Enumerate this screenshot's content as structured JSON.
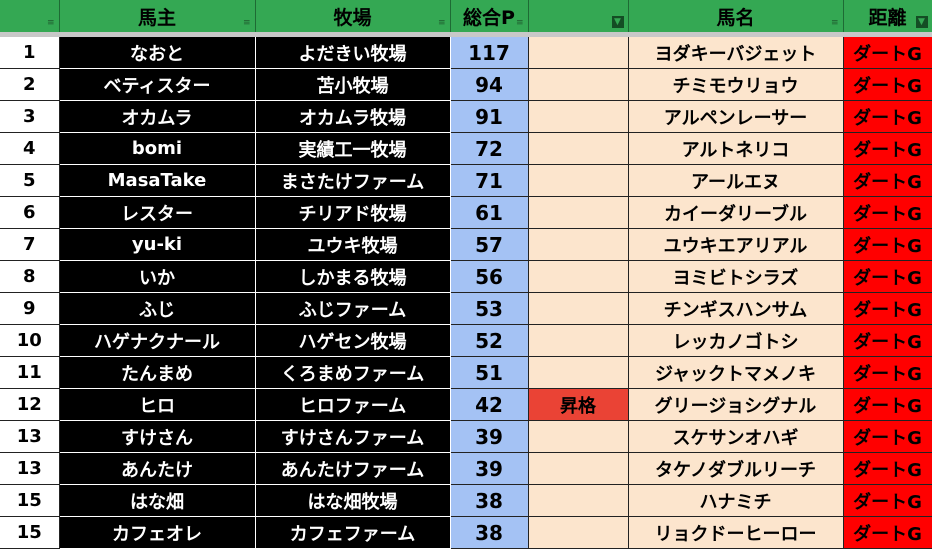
{
  "headers": [
    "",
    "馬主",
    "牧場",
    "総合P",
    "",
    "馬名",
    "距離"
  ],
  "filter_icons": [
    "filter-icon",
    "filter-icon",
    "filter-icon",
    "filter-icon",
    "filter-active-icon",
    "filter-icon",
    "filter-active-icon"
  ],
  "filter_glyph": "≡",
  "filter_active_glyph": "▼",
  "colors": {
    "header": "#34a853",
    "owner": "#000000",
    "points": "#a4c2f4",
    "peach": "#fce5cd",
    "promotion": "#ea4335",
    "distance": "#ff0000"
  },
  "rows": [
    {
      "rank": "1",
      "owner": "なおと",
      "farm": "よだきい牧場",
      "points": "117",
      "note": "",
      "horse": "ヨダキーバジェット",
      "distance": "ダートG"
    },
    {
      "rank": "2",
      "owner": "ベティスター",
      "farm": "苫小牧場",
      "points": "94",
      "note": "",
      "horse": "チミモウリョウ",
      "distance": "ダートG"
    },
    {
      "rank": "3",
      "owner": "オカムラ",
      "farm": "オカムラ牧場",
      "points": "91",
      "note": "",
      "horse": "アルペンレーサー",
      "distance": "ダートG"
    },
    {
      "rank": "4",
      "owner": "bomi",
      "farm": "実績工一牧場",
      "points": "72",
      "note": "",
      "horse": "アルトネリコ",
      "distance": "ダートG"
    },
    {
      "rank": "5",
      "owner": "MasaTake",
      "farm": "まさたけファーム",
      "points": "71",
      "note": "",
      "horse": "アールエヌ",
      "distance": "ダートG"
    },
    {
      "rank": "6",
      "owner": "レスター",
      "farm": "チリアド牧場",
      "points": "61",
      "note": "",
      "horse": "カイーダリーブル",
      "distance": "ダートG"
    },
    {
      "rank": "7",
      "owner": "yu-ki",
      "farm": "ユウキ牧場",
      "points": "57",
      "note": "",
      "horse": "ユウキエアリアル",
      "distance": "ダートG"
    },
    {
      "rank": "8",
      "owner": "いか",
      "farm": "しかまる牧場",
      "points": "56",
      "note": "",
      "horse": "ヨミビトシラズ",
      "distance": "ダートG"
    },
    {
      "rank": "9",
      "owner": "ふじ",
      "farm": "ふじファーム",
      "points": "53",
      "note": "",
      "horse": "チンギスハンサム",
      "distance": "ダートG"
    },
    {
      "rank": "10",
      "owner": "ハゲナクナール",
      "farm": "ハゲセン牧場",
      "points": "52",
      "note": "",
      "horse": "レッカノゴトシ",
      "distance": "ダートG"
    },
    {
      "rank": "11",
      "owner": "たんまめ",
      "farm": "くろまめファーム",
      "points": "51",
      "note": "",
      "horse": "ジャックトマメノキ",
      "distance": "ダートG"
    },
    {
      "rank": "12",
      "owner": "ヒロ",
      "farm": "ヒロファーム",
      "points": "42",
      "note": "昇格",
      "horse": "グリージョシグナル",
      "distance": "ダートG"
    },
    {
      "rank": "13",
      "owner": "すけさん",
      "farm": "すけさんファーム",
      "points": "39",
      "note": "",
      "horse": "スケサンオハギ",
      "distance": "ダートG"
    },
    {
      "rank": "13",
      "owner": "あんたけ",
      "farm": "あんたけファーム",
      "points": "39",
      "note": "",
      "horse": "タケノダブルリーチ",
      "distance": "ダートG"
    },
    {
      "rank": "15",
      "owner": "はな畑",
      "farm": "はな畑牧場",
      "points": "38",
      "note": "",
      "horse": "ハナミチ",
      "distance": "ダートG"
    },
    {
      "rank": "15",
      "owner": "カフェオレ",
      "farm": "カフェファーム",
      "points": "38",
      "note": "",
      "horse": "リョクドーヒーロー",
      "distance": "ダートG"
    }
  ]
}
